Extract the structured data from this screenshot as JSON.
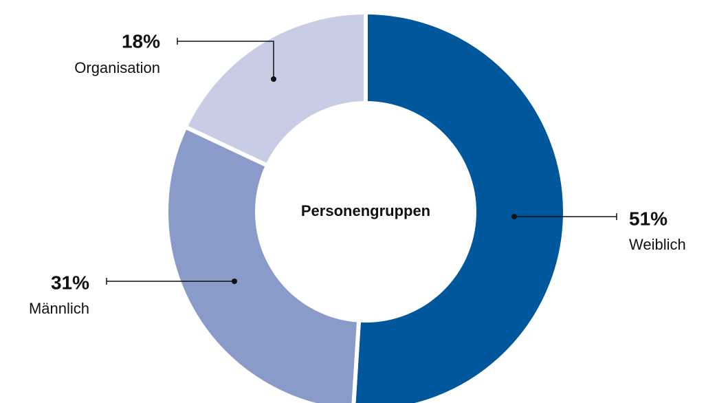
{
  "chart_data": {
    "type": "donut",
    "center_label": "Personengruppen",
    "categories": [
      "Weiblich",
      "Männlich",
      "Organisation"
    ],
    "values": [
      51,
      31,
      18
    ],
    "value_labels": [
      "51%",
      "31%",
      "18%"
    ],
    "colors": [
      "#01579b",
      "#8a9bc9",
      "#c8cde5"
    ]
  }
}
